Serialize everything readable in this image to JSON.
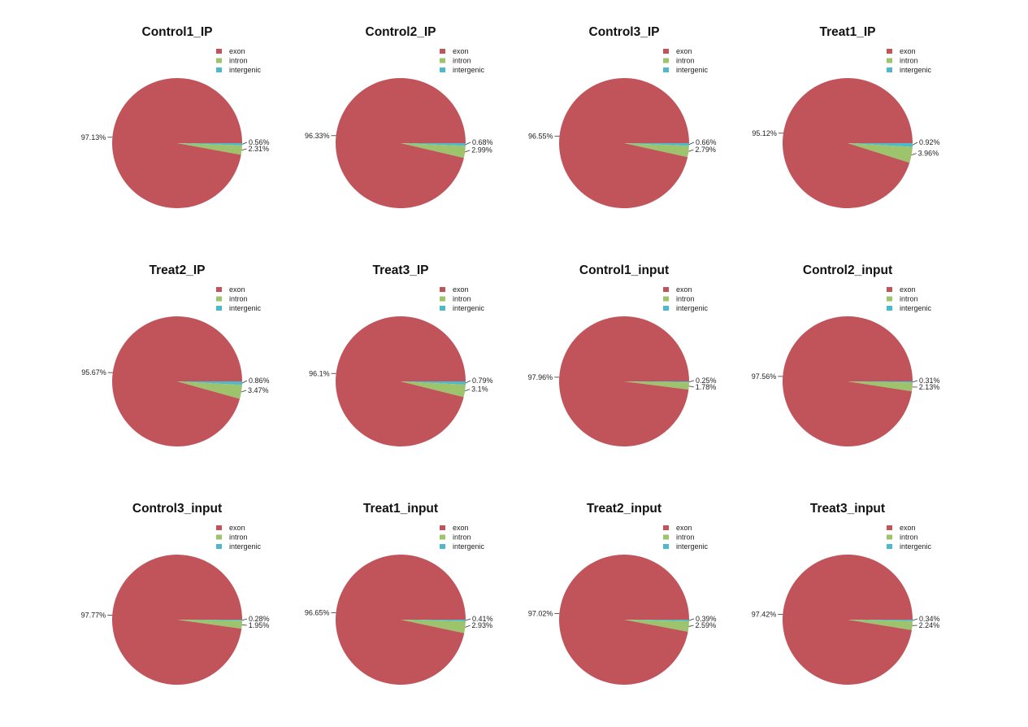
{
  "chart_data": {
    "type": "pie",
    "categories": [
      "exon",
      "intron",
      "intergenic"
    ],
    "colors": {
      "exon": "#c0545a",
      "intron": "#9dc36d",
      "intergenic": "#4fb9cc"
    },
    "legend_position": "top-right",
    "panels": [
      {
        "title": "Control1_IP",
        "values": [
          97.13,
          2.31,
          0.56
        ],
        "labels": [
          "97.13%",
          "2.31%",
          "0.56%"
        ]
      },
      {
        "title": "Control2_IP",
        "values": [
          96.33,
          2.99,
          0.68
        ],
        "labels": [
          "96.33%",
          "2.99%",
          "0.68%"
        ]
      },
      {
        "title": "Control3_IP",
        "values": [
          96.55,
          2.79,
          0.66
        ],
        "labels": [
          "96.55%",
          "2.79%",
          "0.66%"
        ]
      },
      {
        "title": "Treat1_IP",
        "values": [
          95.12,
          3.96,
          0.92
        ],
        "labels": [
          "95.12%",
          "3.96%",
          "0.92%"
        ]
      },
      {
        "title": "Treat2_IP",
        "values": [
          95.67,
          3.47,
          0.86
        ],
        "labels": [
          "95.67%",
          "3.47%",
          "0.86%"
        ]
      },
      {
        "title": "Treat3_IP",
        "values": [
          96.1,
          3.1,
          0.79
        ],
        "labels": [
          "96.1%",
          "3.1%",
          "0.79%"
        ]
      },
      {
        "title": "Control1_input",
        "values": [
          97.96,
          1.78,
          0.25
        ],
        "labels": [
          "97.96%",
          "1.78%",
          "0.25%"
        ]
      },
      {
        "title": "Control2_input",
        "values": [
          97.56,
          2.13,
          0.31
        ],
        "labels": [
          "97.56%",
          "2.13%",
          "0.31%"
        ]
      },
      {
        "title": "Control3_input",
        "values": [
          97.77,
          1.95,
          0.28
        ],
        "labels": [
          "97.77%",
          "1.95%",
          "0.28%"
        ]
      },
      {
        "title": "Treat1_input",
        "values": [
          96.65,
          2.93,
          0.41
        ],
        "labels": [
          "96.65%",
          "2.93%",
          "0.41%"
        ]
      },
      {
        "title": "Treat2_input",
        "values": [
          97.02,
          2.59,
          0.39
        ],
        "labels": [
          "97.02%",
          "2.59%",
          "0.39%"
        ]
      },
      {
        "title": "Treat3_input",
        "values": [
          97.42,
          2.24,
          0.34
        ],
        "labels": [
          "97.42%",
          "2.24%",
          "0.34%"
        ]
      }
    ]
  }
}
